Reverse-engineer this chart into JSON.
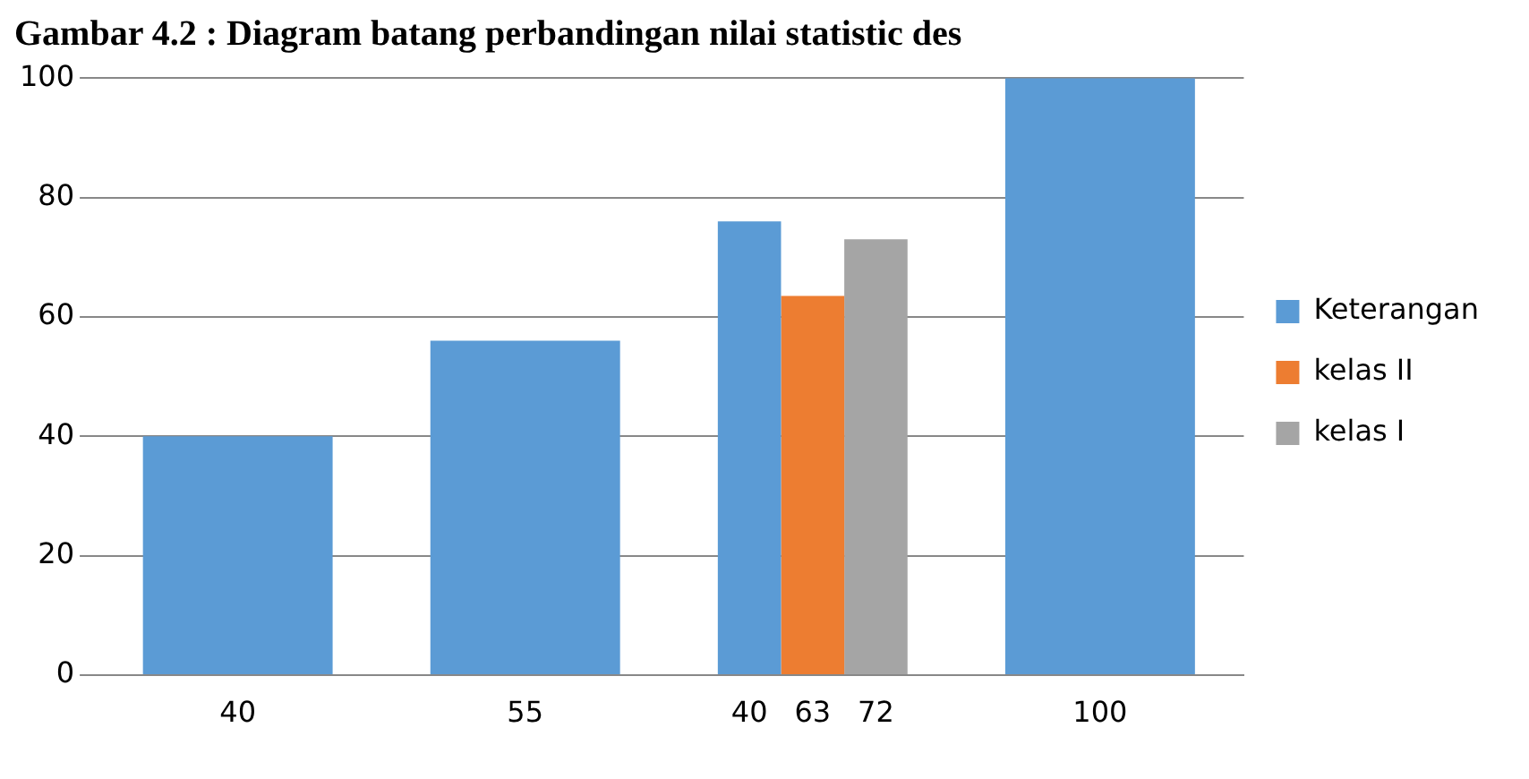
{
  "chart_data": {
    "type": "bar",
    "title": "Gambar 4.2 : Diagram batang perbandingan nilai statistic des",
    "categories": [
      "40",
      "55",
      "40",
      "100"
    ],
    "series": [
      {
        "name": "Keterangan",
        "color": "#5b9bd5",
        "values": [
          40,
          56,
          76,
          100
        ]
      },
      {
        "name": "kelas II",
        "color": "#ed7d31",
        "values": [
          null,
          null,
          63.5,
          null
        ]
      },
      {
        "name": "kelas I",
        "color": "#a5a5a5",
        "values": [
          null,
          null,
          73,
          null
        ]
      }
    ],
    "annotations": [
      "63",
      "72"
    ],
    "ylim": [
      0,
      100
    ],
    "yticks": [
      0,
      20,
      40,
      60,
      80,
      100
    ],
    "grid": "y",
    "legend": "right"
  }
}
